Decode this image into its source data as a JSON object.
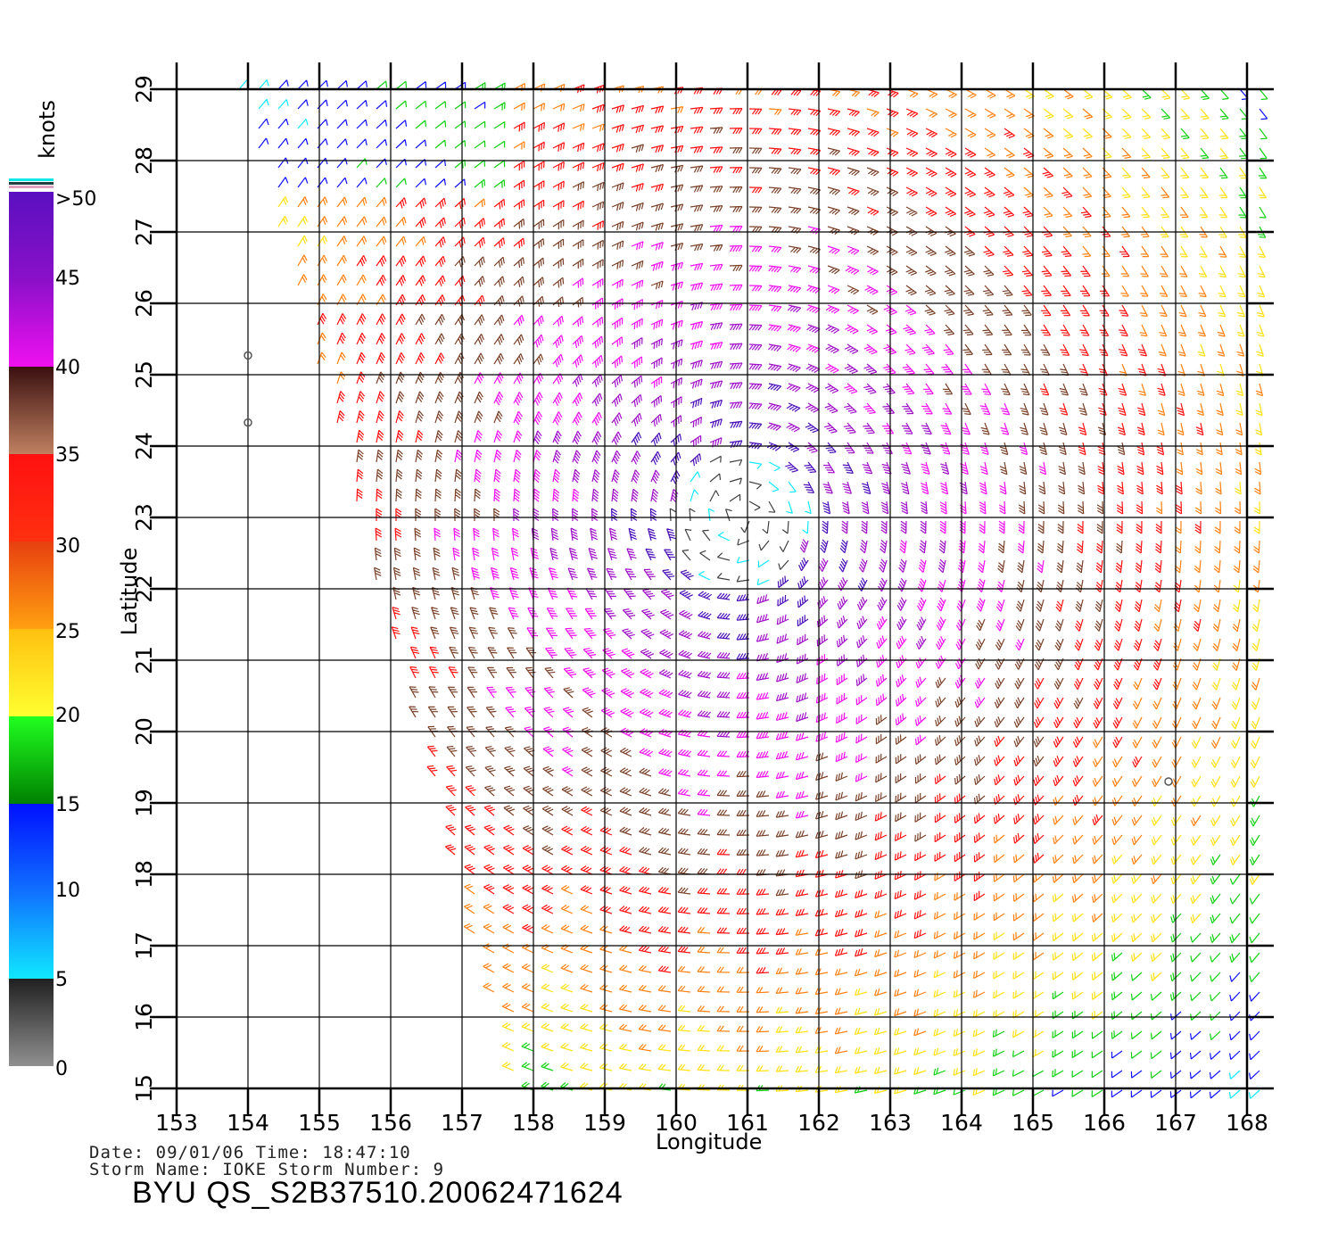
{
  "map": {
    "title": "",
    "x_axis": {
      "label": "Longitude",
      "ticks": [
        "153",
        "154",
        "155",
        "156",
        "157",
        "158",
        "159",
        "160",
        "161",
        "162",
        "163",
        "164",
        "165",
        "166",
        "167",
        "168"
      ],
      "range": [
        153,
        168
      ]
    },
    "y_axis": {
      "label": "Latitude",
      "ticks": [
        "15",
        "16",
        "17",
        "18",
        "19",
        "20",
        "21",
        "22",
        "23",
        "24",
        "25",
        "26",
        "27",
        "28",
        "29"
      ],
      "range": [
        15,
        29
      ]
    },
    "storm_center": {
      "lon": 160.9,
      "lat": 23.0
    },
    "island_markers": [
      {
        "lon": 154.0,
        "lat": 25.27
      },
      {
        "lon": 154.0,
        "lat": 24.33
      },
      {
        "lon": 166.9,
        "lat": 19.3
      }
    ]
  },
  "colorbar": {
    "unit": "knots",
    "labels": [
      ">50",
      "45",
      "40",
      "35",
      "30",
      "25",
      "20",
      "15",
      "10",
      "5",
      "0"
    ],
    "colors": {
      "gt50": "#4a0fb8",
      "45": "#a010c8",
      "40": "#f010f0",
      "35": "#7a4028",
      "30": "#ff1010",
      "25": "#ff8010",
      "20": "#ffe010",
      "15": "#10d010",
      "10": "#1010ff",
      "5": "#10e8ff",
      "0": "#404040"
    }
  },
  "info": {
    "date_line": "Date: 09/01/06   Time: 18:47:10",
    "storm_line": "Storm  Name: IOKE   Storm  Number: 9",
    "product_id": "BYU  QS_S2B37510.20062471624"
  }
}
